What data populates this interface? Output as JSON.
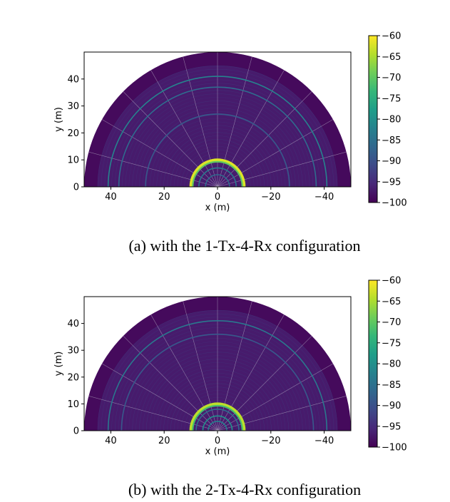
{
  "chart_data": [
    {
      "type": "heatmap",
      "caption": "(a) with the 1-Tx-4-Rx configuration",
      "xlabel": "x (m)",
      "ylabel": "y (m)",
      "xlim": [
        50,
        -50
      ],
      "ylim": [
        0,
        50
      ],
      "x_ticks": [
        40,
        20,
        0,
        -20,
        -40
      ],
      "x_tick_labels": [
        "40",
        "20",
        "0",
        "−20",
        "−40"
      ],
      "y_ticks": [
        0,
        10,
        20,
        30,
        40
      ],
      "y_tick_labels": [
        "0",
        "10",
        "20",
        "30",
        "40"
      ],
      "colorbar": {
        "range": [
          -100,
          -60
        ],
        "ticks": [
          -60,
          -65,
          -70,
          -75,
          -80,
          -85,
          -90,
          -95,
          -100
        ],
        "tick_labels": [
          "−60",
          "−65",
          "−70",
          "−75",
          "−80",
          "−85",
          "−90",
          "−95",
          "−100"
        ],
        "colormap": "viridis"
      },
      "field": {
        "max_range_m": 50,
        "background_db": -97,
        "edge_band_db": -99,
        "edge_band_from_m": 45,
        "bright_rings": [
          {
            "r_m": 10,
            "db": -62
          },
          {
            "r_m": 9.3,
            "db": -70
          },
          {
            "r_m": 41,
            "db": -82
          },
          {
            "r_m": 37,
            "db": -86
          },
          {
            "r_m": 27,
            "db": -89
          },
          {
            "r_m": 7,
            "db": -84
          },
          {
            "r_m": 4.5,
            "db": -86
          }
        ],
        "beam_angles_deg": [
          15,
          30,
          45,
          60,
          75,
          90,
          105,
          120,
          135,
          150,
          165
        ]
      }
    },
    {
      "type": "heatmap",
      "caption": "(b) with the 2-Tx-4-Rx configuration",
      "xlabel": "x (m)",
      "ylabel": "y (m)",
      "xlim": [
        50,
        -50
      ],
      "ylim": [
        0,
        50
      ],
      "x_ticks": [
        40,
        20,
        0,
        -20,
        -40
      ],
      "x_tick_labels": [
        "40",
        "20",
        "0",
        "−20",
        "−40"
      ],
      "y_ticks": [
        0,
        10,
        20,
        30,
        40
      ],
      "y_tick_labels": [
        "0",
        "10",
        "20",
        "30",
        "40"
      ],
      "colorbar": {
        "range": [
          -100,
          -60
        ],
        "ticks": [
          -60,
          -65,
          -70,
          -75,
          -80,
          -85,
          -90,
          -95,
          -100
        ],
        "tick_labels": [
          "−60",
          "−65",
          "−70",
          "−75",
          "−80",
          "−85",
          "−90",
          "−95",
          "−100"
        ],
        "colormap": "viridis"
      },
      "field": {
        "max_range_m": 50,
        "background_db": -97,
        "edge_band_db": -99,
        "edge_band_from_m": 45,
        "bright_rings": [
          {
            "r_m": 10,
            "db": -64
          },
          {
            "r_m": 9.3,
            "db": -72
          },
          {
            "r_m": 5.5,
            "db": -80
          },
          {
            "r_m": 3.5,
            "db": -83
          },
          {
            "r_m": 41,
            "db": -84
          },
          {
            "r_m": 36,
            "db": -89
          },
          {
            "r_m": 8,
            "db": -86
          }
        ],
        "beam_angles_deg": [
          15,
          30,
          45,
          60,
          75,
          90,
          105,
          120,
          135,
          150,
          165
        ]
      }
    }
  ]
}
